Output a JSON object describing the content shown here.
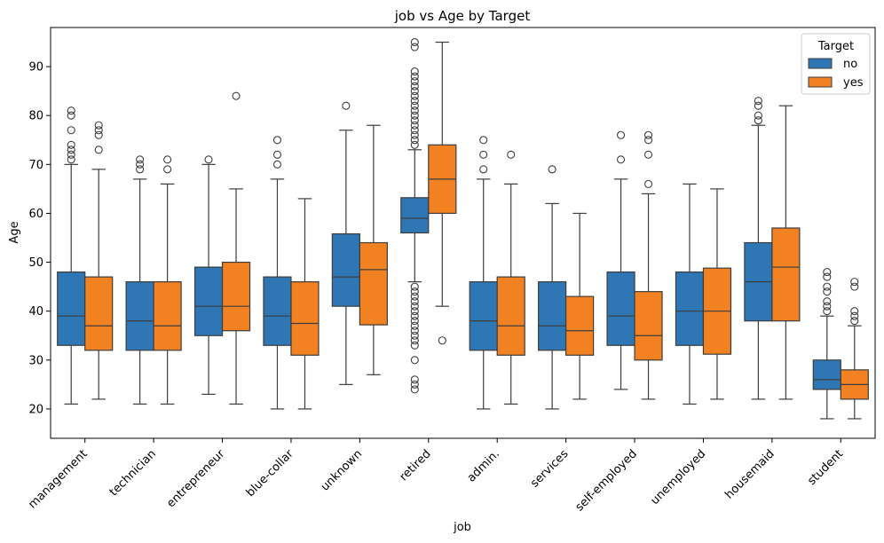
{
  "chart_data": {
    "type": "boxplot",
    "title": "job vs Age by Target",
    "xlabel": "job",
    "ylabel": "Age",
    "ylim": [
      14,
      98
    ],
    "yticks": [
      20,
      30,
      40,
      50,
      60,
      70,
      80,
      90
    ],
    "grid": false,
    "legend": {
      "title": "Target",
      "placement": "top-right"
    },
    "categories": [
      "management",
      "technician",
      "entrepreneur",
      "blue-collar",
      "unknown",
      "retired",
      "admin.",
      "services",
      "self-employed",
      "unemployed",
      "housemaid",
      "student"
    ],
    "series": [
      {
        "name": "no",
        "color": "#2f77b4",
        "boxes": [
          {
            "whislo": 21,
            "q1": 33,
            "med": 39,
            "q3": 48,
            "whishi": 70,
            "fliers": [
              71,
              72,
              73,
              74,
              77,
              80,
              81
            ]
          },
          {
            "whislo": 21,
            "q1": 32,
            "med": 38,
            "q3": 46,
            "whishi": 67,
            "fliers": [
              69,
              70,
              71
            ]
          },
          {
            "whislo": 23,
            "q1": 35,
            "med": 41,
            "q3": 49,
            "whishi": 70,
            "fliers": [
              71
            ]
          },
          {
            "whislo": 20,
            "q1": 33,
            "med": 39,
            "q3": 47,
            "whishi": 67,
            "fliers": [
              70,
              72,
              75
            ]
          },
          {
            "whislo": 25,
            "q1": 41,
            "med": 47,
            "q3": 55.8,
            "whishi": 77,
            "fliers": [
              82
            ]
          },
          {
            "whislo": 46,
            "q1": 56,
            "med": 59,
            "q3": 63.2,
            "whishi": 73,
            "fliers": [
              24,
              25,
              26,
              30,
              33,
              34,
              35,
              36,
              37,
              38,
              39,
              40,
              41,
              42,
              43,
              44,
              45,
              74,
              75,
              76,
              77,
              78,
              79,
              80,
              81,
              82,
              83,
              84,
              85,
              86,
              87,
              88,
              89,
              94,
              95
            ]
          },
          {
            "whislo": 20,
            "q1": 32,
            "med": 38,
            "q3": 46,
            "whishi": 67,
            "fliers": [
              69,
              72,
              75
            ]
          },
          {
            "whislo": 20,
            "q1": 32,
            "med": 37,
            "q3": 46,
            "whishi": 62,
            "fliers": [
              69
            ]
          },
          {
            "whislo": 24,
            "q1": 33,
            "med": 39,
            "q3": 48,
            "whishi": 67,
            "fliers": [
              71,
              76
            ]
          },
          {
            "whislo": 21,
            "q1": 33,
            "med": 40,
            "q3": 48,
            "whishi": 66,
            "fliers": []
          },
          {
            "whislo": 22,
            "q1": 38,
            "med": 46,
            "q3": 54,
            "whishi": 78,
            "fliers": [
              79,
              80,
              82,
              83
            ]
          },
          {
            "whislo": 18,
            "q1": 24,
            "med": 26,
            "q3": 30,
            "whishi": 39,
            "fliers": [
              40,
              41,
              42,
              44,
              45,
              47,
              48
            ]
          }
        ]
      },
      {
        "name": "yes",
        "color": "#f28122",
        "boxes": [
          {
            "whislo": 22,
            "q1": 32,
            "med": 37,
            "q3": 47,
            "whishi": 69,
            "fliers": [
              73,
              76,
              77,
              78
            ]
          },
          {
            "whislo": 21,
            "q1": 32,
            "med": 37,
            "q3": 46,
            "whishi": 66,
            "fliers": [
              69,
              71
            ]
          },
          {
            "whislo": 21,
            "q1": 36,
            "med": 41,
            "q3": 50,
            "whishi": 65,
            "fliers": [
              84
            ]
          },
          {
            "whislo": 20,
            "q1": 31,
            "med": 37.5,
            "q3": 46,
            "whishi": 63,
            "fliers": []
          },
          {
            "whislo": 27,
            "q1": 37.2,
            "med": 48.5,
            "q3": 54,
            "whishi": 78,
            "fliers": []
          },
          {
            "whislo": 41,
            "q1": 60,
            "med": 67,
            "q3": 74,
            "whishi": 95,
            "fliers": [
              34
            ]
          },
          {
            "whislo": 21,
            "q1": 31,
            "med": 37,
            "q3": 47,
            "whishi": 66,
            "fliers": [
              72
            ]
          },
          {
            "whislo": 22,
            "q1": 31,
            "med": 36,
            "q3": 43,
            "whishi": 60,
            "fliers": []
          },
          {
            "whislo": 22,
            "q1": 30,
            "med": 35,
            "q3": 44,
            "whishi": 64,
            "fliers": [
              66,
              72,
              75,
              76
            ]
          },
          {
            "whislo": 22,
            "q1": 31.2,
            "med": 40,
            "q3": 48.8,
            "whishi": 65,
            "fliers": []
          },
          {
            "whislo": 22,
            "q1": 38,
            "med": 49,
            "q3": 57,
            "whishi": 82,
            "fliers": []
          },
          {
            "whislo": 18,
            "q1": 22,
            "med": 25,
            "q3": 28,
            "whishi": 37,
            "fliers": [
              38,
              39,
              40,
              45,
              46
            ]
          }
        ]
      }
    ]
  }
}
